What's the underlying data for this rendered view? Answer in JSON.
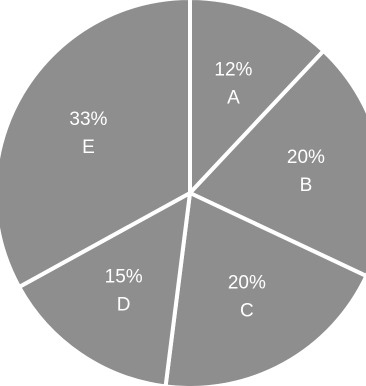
{
  "chart_data": {
    "type": "pie",
    "slices": [
      {
        "label": "A",
        "percent_label": "12%",
        "value": 12
      },
      {
        "label": "B",
        "percent_label": "20%",
        "value": 20
      },
      {
        "label": "C",
        "percent_label": "20%",
        "value": 20
      },
      {
        "label": "D",
        "percent_label": "15%",
        "value": 15
      },
      {
        "label": "E",
        "percent_label": "33%",
        "value": 33
      }
    ],
    "start": "top, clockwise",
    "slice_color": "#8e8e8e",
    "separator_color": "#ffffff",
    "label_color": "#ffffff",
    "legend": "none"
  }
}
